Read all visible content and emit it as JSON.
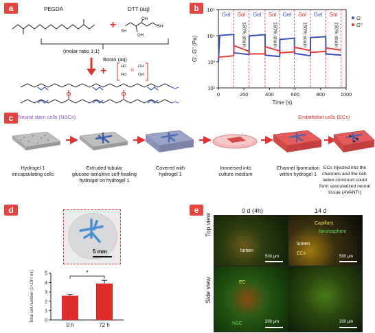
{
  "panels": {
    "a": {
      "badge": "a",
      "pegda": "PEGDA",
      "dtt": "DTT (aq)",
      "plus1": "+",
      "molar_ratio": "(molar ratio 1:1)",
      "borax": "Borax (aq)",
      "plus2": "+",
      "sh1": "SH",
      "sh2": "SH",
      "oh1": "OH",
      "oh2": "OH",
      "ho1": "HO",
      "ho2": "HO",
      "b": "B",
      "boh1": "OH",
      "boh2": "OH"
    },
    "b": {
      "badge": "b",
      "phase_labels": [
        "Gel",
        "Sol",
        "Gel",
        "Sol",
        "Gel",
        "Sol",
        "Gel",
        "Sol"
      ],
      "strain_labels": [
        "150% strain",
        "150% strain",
        "150% strain",
        "150% strain"
      ],
      "legend_g1": "G'",
      "legend_g2": "G\""
    },
    "c": {
      "badge": "c",
      "nsc_label": "Neural stem cells (NSCs)",
      "ec_label": "Endothelial cells (ECs)",
      "steps": [
        "Hydrogel 1\nencapsulating cells",
        "Extruded tubular\nglucose-sensitive self-healing\nhydrogel on hydrogel 1",
        "Covered with\nhydrogel 1",
        "Immersed into\nculture medium",
        "Channel fpormation\nwithin hydrogel 1",
        "ECs injected into the\nchannels and the cell-\nladen construct could\nform vascularized neural\ntissue (AVANTI)"
      ]
    },
    "d": {
      "badge": "d",
      "scale": "5 mm",
      "significance": "*"
    },
    "e": {
      "badge": "e",
      "col1": "0 d (4h)",
      "col2": "14 d",
      "row1": "Top view",
      "row2": "Side view",
      "lumen1": "lumen",
      "capillary": "Capillary",
      "neurosphere": "Neurosphere",
      "lumen2": "lumen",
      "ecs": "ECs",
      "ec": "EC",
      "nsc": "NSC",
      "scale1": "500 μm",
      "scale2": "500 μm",
      "scale3": "200 μm",
      "scale4": "200 μm"
    }
  },
  "chart_data": [
    {
      "type": "line",
      "panel": "b",
      "xlabel": "Time (s)",
      "ylabel": "G', G\" (Pa)",
      "xlim": [
        0,
        1000
      ],
      "ylim": [
        100,
        100000
      ],
      "yscale": "log",
      "xticks": [
        "0",
        "200",
        "400",
        "600",
        "800",
        "1000"
      ],
      "yticks": [
        "10⁵",
        "10⁴",
        "10³",
        "10²"
      ],
      "legend_position": "top-right",
      "series": [
        {
          "name": "G'",
          "color": "#3b4fc4",
          "points": [
            [
              0,
              1000
            ],
            [
              10,
              10200
            ],
            [
              120,
              11200
            ],
            [
              121,
              2200
            ],
            [
              240,
              1900
            ],
            [
              241,
              9800
            ],
            [
              365,
              11000
            ],
            [
              366,
              1800
            ],
            [
              480,
              1600
            ],
            [
              481,
              7200
            ],
            [
              595,
              8000
            ],
            [
              596,
              2100
            ],
            [
              720,
              1700
            ],
            [
              721,
              8500
            ],
            [
              840,
              9200
            ],
            [
              841,
              2000
            ],
            [
              960,
              1800
            ]
          ]
        },
        {
          "name": "G\"",
          "color": "#e03c3c",
          "points": [
            [
              0,
              1500
            ],
            [
              120,
              1700
            ],
            [
              121,
              4200
            ],
            [
              240,
              2500
            ],
            [
              241,
              2000
            ],
            [
              365,
              2000
            ],
            [
              366,
              3800
            ],
            [
              480,
              2600
            ],
            [
              481,
              2200
            ],
            [
              595,
              2400
            ],
            [
              596,
              3600
            ],
            [
              720,
              2700
            ],
            [
              721,
              2300
            ],
            [
              840,
              2500
            ],
            [
              841,
              3400
            ],
            [
              960,
              2800
            ]
          ]
        }
      ]
    },
    {
      "type": "bar",
      "panel": "d",
      "categories": [
        "0 h",
        "72 h"
      ],
      "values": [
        2.6,
        3.9
      ],
      "errors": [
        0.15,
        0.35
      ],
      "ylabel": "Total cell number (1×10⁶/ ml)",
      "ylim": [
        0,
        5
      ],
      "yticks": [
        "0",
        "1",
        "2",
        "3",
        "4",
        "5"
      ],
      "color": "#e02b2b"
    }
  ]
}
